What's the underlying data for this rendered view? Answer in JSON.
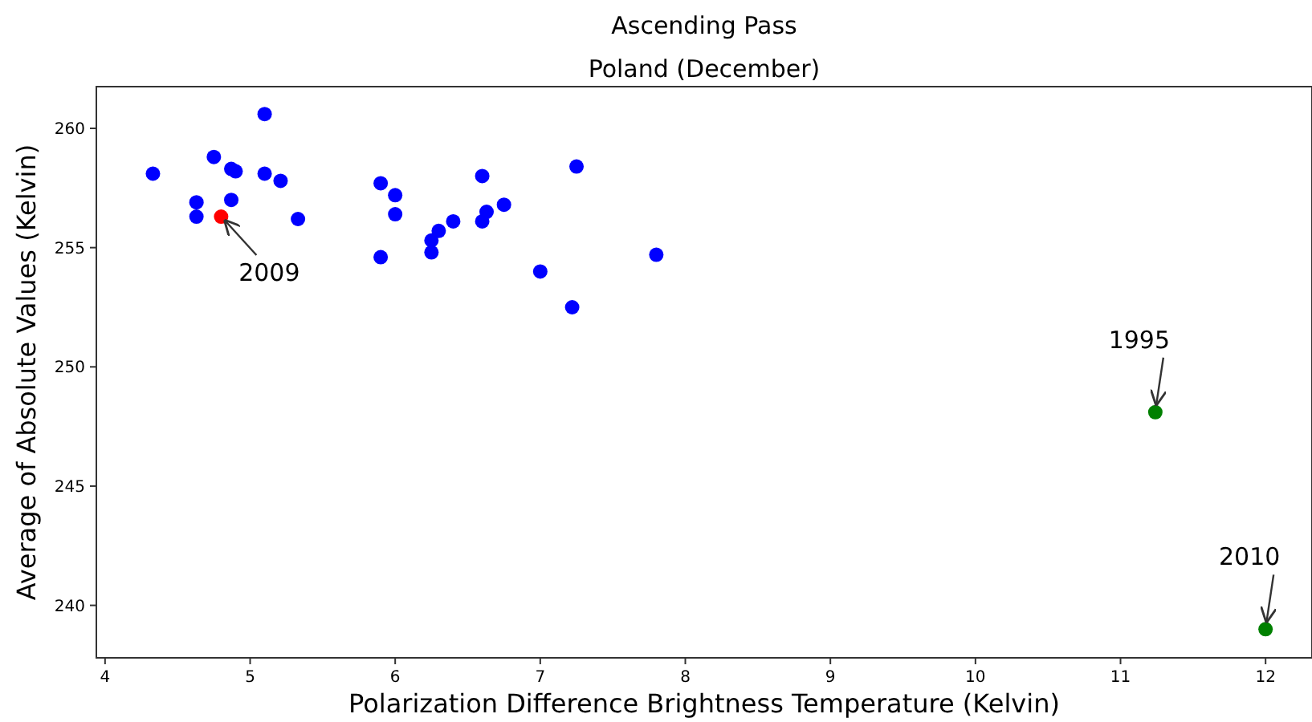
{
  "chart_data": {
    "type": "scatter",
    "title": "Ascending Pass",
    "subtitle": "Poland (December)",
    "xlabel": "Polarization Difference Brightness Temperature (Kelvin)",
    "ylabel": "Average of Absolute Values (Kelvin)",
    "xlim": [
      3.94,
      12.32
    ],
    "ylim": [
      237.8,
      261.75
    ],
    "xticks": [
      4,
      5,
      6,
      7,
      8,
      9,
      10,
      11,
      12
    ],
    "yticks": [
      240,
      245,
      250,
      255,
      260
    ],
    "grid": false,
    "marker": "circle",
    "series": [
      {
        "color": "#0000ff",
        "x": [
          4.33,
          4.63,
          4.63,
          4.75,
          4.87,
          4.9,
          4.87,
          5.1,
          5.1,
          5.21,
          5.33,
          5.9,
          5.9,
          6.0,
          6.0,
          6.25,
          6.25,
          6.3,
          6.4,
          6.6,
          6.6,
          6.63,
          6.75,
          7.0,
          7.25,
          7.22,
          7.8
        ],
        "values": [
          258.1,
          256.9,
          256.3,
          258.8,
          258.3,
          258.2,
          257.0,
          260.6,
          258.1,
          257.8,
          256.2,
          257.7,
          254.6,
          257.2,
          256.4,
          255.3,
          254.8,
          255.7,
          256.1,
          258.0,
          256.1,
          256.5,
          256.8,
          254.0,
          258.4,
          252.5,
          254.7
        ]
      },
      {
        "color": "#ff0000",
        "x": [
          4.8
        ],
        "values": [
          256.3
        ]
      },
      {
        "color": "#008000",
        "x": [
          11.24,
          12.0
        ],
        "values": [
          248.1,
          239.0
        ]
      }
    ],
    "annotations": [
      {
        "text": "2009",
        "x": 4.8,
        "y": 256.3
      },
      {
        "text": "1995",
        "x": 11.24,
        "y": 248.1
      },
      {
        "text": "2010",
        "x": 12.0,
        "y": 239.0
      }
    ]
  }
}
